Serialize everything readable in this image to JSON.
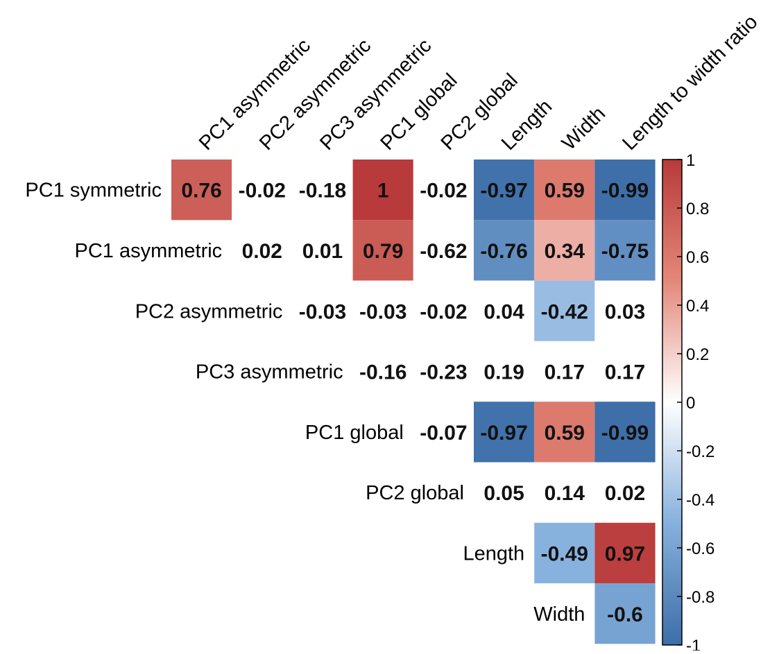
{
  "chart_data": {
    "type": "heatmap",
    "title": "",
    "column_labels": [
      "PC1 asymmetric",
      "PC2 asymmetric",
      "PC3 asymmetric",
      "PC1 global",
      "PC2 global",
      "Length",
      "Width",
      "Length to width ratio"
    ],
    "row_labels": [
      "PC1 symmetric",
      "PC1 asymmetric",
      "PC2 asymmetric",
      "PC3 asymmetric",
      "PC1 global",
      "PC2 global",
      "Length",
      "Width"
    ],
    "rows": [
      {
        "start_col": 0,
        "values": [
          "0.76",
          "-0.02",
          "-0.18",
          "1",
          "-0.02",
          "-0.97",
          "0.59",
          "-0.99"
        ],
        "colored": [
          true,
          false,
          false,
          true,
          false,
          true,
          true,
          true
        ]
      },
      {
        "start_col": 1,
        "values": [
          "0.02",
          "0.01",
          "0.79",
          "-0.62",
          "-0.76",
          "0.34",
          "-0.75"
        ],
        "colored": [
          false,
          false,
          true,
          false,
          true,
          true,
          true
        ]
      },
      {
        "start_col": 2,
        "values": [
          "-0.03",
          "-0.03",
          "-0.02",
          "0.04",
          "-0.42",
          "0.03"
        ],
        "colored": [
          false,
          false,
          false,
          false,
          true,
          false
        ]
      },
      {
        "start_col": 3,
        "values": [
          "-0.16",
          "-0.23",
          "0.19",
          "0.17",
          "0.17"
        ],
        "colored": [
          false,
          false,
          false,
          false,
          false
        ]
      },
      {
        "start_col": 4,
        "values": [
          "-0.07",
          "-0.97",
          "0.59",
          "-0.99"
        ],
        "colored": [
          false,
          true,
          true,
          true
        ]
      },
      {
        "start_col": 5,
        "values": [
          "0.05",
          "0.14",
          "0.02"
        ],
        "colored": [
          false,
          false,
          false
        ]
      },
      {
        "start_col": 6,
        "values": [
          "-0.49",
          "0.97"
        ],
        "colored": [
          true,
          true
        ]
      },
      {
        "start_col": 7,
        "values": [
          "-0.6"
        ],
        "colored": [
          true
        ]
      }
    ],
    "colorbar": {
      "range": [
        -1,
        1
      ],
      "ticks": [
        "1",
        "0.8",
        "0.6",
        "0.4",
        "0.2",
        "0",
        "-0.2",
        "-0.4",
        "-0.6",
        "-0.8",
        "-1"
      ],
      "colors": {
        "low": "#3d6ea8",
        "mid": "#ffffff",
        "high": "#b83a3a"
      }
    }
  }
}
